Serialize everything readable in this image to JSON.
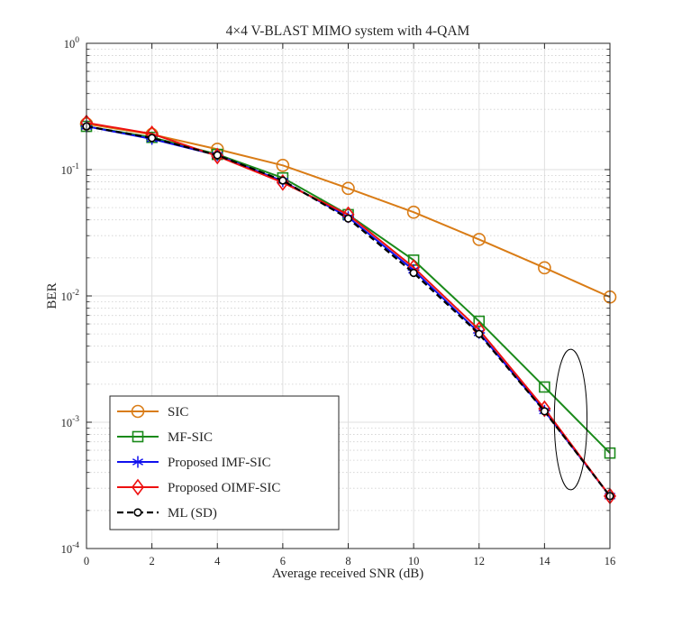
{
  "chart_data": {
    "type": "line",
    "title": "4×4 V-BLAST MIMO system with 4-QAM",
    "xlabel": "Average received SNR (dB)",
    "ylabel": "BER",
    "xscale": "linear",
    "yscale": "log",
    "xlim": [
      0,
      16
    ],
    "ylim": [
      0.0001,
      1
    ],
    "grid": true,
    "legend_location": "bottom-left",
    "x": [
      0,
      2,
      4,
      6,
      8,
      10,
      12,
      14,
      16
    ],
    "x_tick_labels": [
      "0",
      "2",
      "4",
      "6",
      "8",
      "10",
      "12",
      "14",
      "16"
    ],
    "y_ticks": [
      0.0001,
      0.001,
      0.01,
      0.1,
      1
    ],
    "y_tick_labels": [
      {
        "base": "10",
        "exp": "-4"
      },
      {
        "base": "10",
        "exp": "-3"
      },
      {
        "base": "10",
        "exp": "-2"
      },
      {
        "base": "10",
        "exp": "-1"
      },
      {
        "base": "10",
        "exp": "0"
      }
    ],
    "series": [
      {
        "name": "SIC",
        "color": "#d97c16",
        "marker": "circle",
        "dashed": false,
        "values": [
          0.23,
          0.19,
          0.145,
          0.108,
          0.071,
          0.046,
          0.028,
          0.0167,
          0.0098
        ]
      },
      {
        "name": "MF-SIC",
        "color": "#1a8a1a",
        "marker": "square",
        "dashed": false,
        "values": [
          0.22,
          0.18,
          0.132,
          0.086,
          0.044,
          0.0192,
          0.0063,
          0.0019,
          0.00057
        ]
      },
      {
        "name": "Proposed IMF-SIC",
        "color": "#1010ee",
        "marker": "asterisk",
        "dashed": false,
        "values": [
          0.22,
          0.175,
          0.13,
          0.081,
          0.042,
          0.016,
          0.0051,
          0.00123,
          0.00026
        ]
      },
      {
        "name": "Proposed OIMF-SIC",
        "color": "#ee1010",
        "marker": "diamond",
        "dashed": false,
        "values": [
          0.235,
          0.192,
          0.128,
          0.079,
          0.044,
          0.0168,
          0.0054,
          0.00128,
          0.00026
        ]
      },
      {
        "name": "ML (SD)",
        "color": "#000000",
        "marker": "circle-small",
        "dashed": true,
        "values": [
          0.22,
          0.178,
          0.13,
          0.082,
          0.041,
          0.0152,
          0.005,
          0.00122,
          0.00026
        ]
      }
    ],
    "annotations": [
      {
        "type": "ellipse",
        "center_x": 14.8,
        "center_y": 0.00105,
        "span_x": 1.0,
        "span_y_factor": 3.6
      }
    ]
  }
}
